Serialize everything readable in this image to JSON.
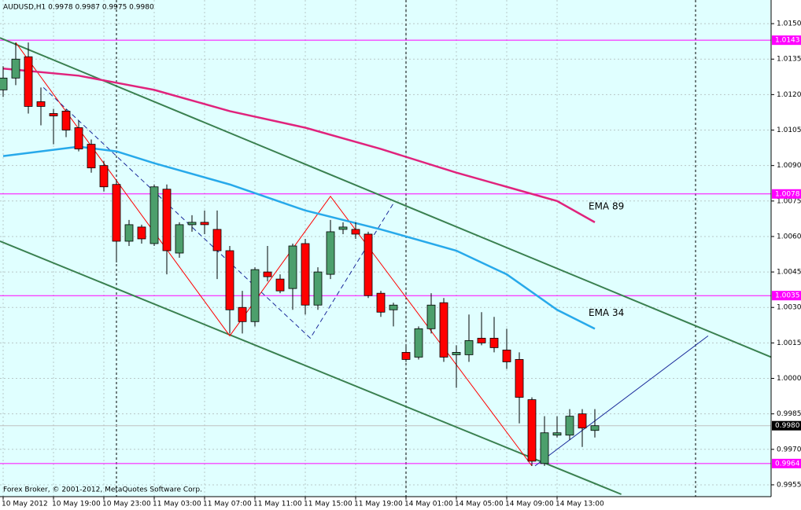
{
  "chart_data": {
    "type": "candlestick",
    "header": "AUDUSD,H1  0.9978 0.9987 0.9975 0.9980",
    "footer": "Forex Broker, © 2001-2012, MetaQuotes Software Corp.",
    "categories": [
      "10 May 2012",
      null,
      null,
      null,
      "10 May 19:00",
      null,
      null,
      null,
      "10 May 23:00",
      null,
      null,
      null,
      "11 May 03:00",
      null,
      null,
      null,
      "11 May 07:00",
      null,
      null,
      null,
      "11 May 11:00",
      null,
      null,
      null,
      "11 May 15:00",
      null,
      null,
      null,
      "11 May 19:00",
      null,
      null,
      null,
      "14 May 01:00",
      null,
      null,
      null,
      "14 May 05:00",
      null,
      null,
      null,
      "14 May 09:00",
      null,
      null,
      null,
      "14 May 13:00",
      null,
      null,
      null
    ],
    "open": [
      1.0122,
      1.0127,
      1.0136,
      1.0117,
      1.0112,
      1.0113,
      1.0106,
      1.0099,
      1.009,
      1.0082,
      1.0058,
      1.0064,
      1.0057,
      1.008,
      1.0053,
      1.0065,
      1.0066,
      1.0063,
      1.0054,
      1.003,
      1.0024,
      1.0045,
      1.0042,
      1.0038,
      1.0057,
      1.0031,
      1.0044,
      1.0063,
      1.0063,
      1.0061,
      1.0036,
      1.0029,
      1.0011,
      1.0009,
      1.0021,
      1.0032,
      1.001,
      1.001,
      1.0017,
      1.0017,
      1.0012,
      1.0008,
      0.9991,
      0.9964,
      0.9976,
      0.9976,
      0.9985,
      0.9978
    ],
    "high": [
      1.0132,
      1.0142,
      1.0142,
      1.0123,
      1.0114,
      1.0114,
      1.0109,
      1.0101,
      1.0092,
      1.0084,
      1.0067,
      1.0065,
      1.0082,
      1.0082,
      1.0066,
      1.0069,
      1.0071,
      1.0071,
      1.0056,
      1.0037,
      1.0047,
      1.0056,
      1.0044,
      1.0057,
      1.0059,
      1.0047,
      1.0067,
      1.0066,
      1.0066,
      1.0062,
      1.0037,
      1.0032,
      1.0014,
      1.0022,
      1.0036,
      1.0034,
      1.0014,
      1.0027,
      1.0028,
      1.0026,
      1.0021,
      1.0011,
      0.9992,
      0.9984,
      0.9984,
      0.9987,
      0.9987,
      0.9987
    ],
    "low": [
      1.0119,
      1.0124,
      1.0112,
      1.0107,
      1.0099,
      1.0102,
      1.0096,
      1.0087,
      1.0079,
      1.0049,
      1.0056,
      1.0057,
      1.0056,
      1.0044,
      1.0051,
      1.0062,
      1.0061,
      1.0042,
      1.0019,
      1.0019,
      1.0022,
      1.0041,
      1.0036,
      1.0029,
      1.0027,
      1.0029,
      1.0042,
      1.0061,
      1.0059,
      1.0034,
      1.0026,
      1.0022,
      1.0007,
      1.0008,
      1.0019,
      1.0007,
      0.9996,
      1.0007,
      1.0014,
      1.0011,
      1.0004,
      0.9981,
      0.9963,
      0.9963,
      0.9975,
      0.9974,
      0.9971,
      0.9975
    ],
    "close": [
      1.0127,
      1.0135,
      1.0115,
      1.0115,
      1.0111,
      1.0105,
      1.0097,
      1.0089,
      1.0081,
      1.0058,
      1.0065,
      1.0059,
      1.0081,
      1.0054,
      1.0065,
      1.0066,
      1.0065,
      1.0054,
      1.0029,
      1.0024,
      1.0046,
      1.0043,
      1.0037,
      1.0056,
      1.0031,
      1.0045,
      1.0062,
      1.0064,
      1.0061,
      1.0035,
      1.0028,
      1.0031,
      1.0008,
      1.0021,
      1.0031,
      1.0009,
      1.0011,
      1.0016,
      1.0015,
      1.0013,
      1.0007,
      0.9992,
      0.9965,
      0.9977,
      0.9977,
      0.9984,
      0.9979,
      0.998
    ],
    "up_color": "#4c9f6c",
    "down_color": "#ff0000",
    "background": "#e0ffff",
    "ylim": [
      0.995,
      1.016
    ],
    "yticks": [
      {
        "value": 1.015,
        "label": "1.0150"
      },
      1.0135,
      {
        "value": 1.012,
        "label": "1.0120"
      },
      1.0105,
      {
        "value": 1.009,
        "label": "1.0090"
      },
      1.0075,
      {
        "value": 1.006,
        "label": "1.0060"
      },
      1.0045,
      {
        "value": 1.003,
        "label": "1.0030"
      },
      1.0015,
      {
        "value": 1.0,
        "label": "1.0000"
      },
      0.9985,
      {
        "value": 0.997,
        "label": "0.9970"
      },
      0.9955
    ],
    "grid": true,
    "indicators": [
      {
        "name": "EMA 89",
        "color": "#e0237c",
        "x": [
          0,
          6,
          9,
          12,
          18,
          24,
          30,
          36,
          40,
          44,
          47
        ],
        "values": [
          1.0131,
          1.0128,
          1.0125,
          1.0122,
          1.0113,
          1.0106,
          1.0097,
          1.0087,
          1.0081,
          1.0075,
          1.0066
        ]
      },
      {
        "name": "EMA 34",
        "color": "#27a9ea",
        "x": [
          0,
          6,
          9,
          12,
          18,
          24,
          30,
          36,
          40,
          44,
          47
        ],
        "values": [
          1.0094,
          1.0098,
          1.0096,
          1.0091,
          1.0082,
          1.0071,
          1.0063,
          1.0054,
          1.0044,
          1.0029,
          1.0021
        ]
      }
    ],
    "trendlines": [
      {
        "color": "#3a8050",
        "width": 2,
        "dash": false,
        "x": [
          -0.25,
          61
        ],
        "values": [
          1.0144,
          1.0009
        ]
      },
      {
        "color": "#3a8050",
        "width": 2,
        "dash": false,
        "x": [
          -0.25,
          49.1
        ],
        "values": [
          1.0058,
          0.9951
        ]
      },
      {
        "color": "#ff0000",
        "width": 1,
        "dash": false,
        "x": [
          1,
          18,
          26,
          42
        ],
        "values": [
          1.0142,
          1.0018,
          1.0077,
          0.9963
        ]
      },
      {
        "color": "#1a2a9a",
        "width": 1,
        "dash": true,
        "x": [
          3.2,
          24.4,
          31
        ],
        "values": [
          1.0123,
          1.0017,
          1.0074
        ]
      },
      {
        "color": "#1a2a9a",
        "width": 1,
        "dash": false,
        "x": [
          42.25,
          56
        ],
        "values": [
          0.9963,
          1.0018
        ]
      }
    ],
    "levels": {
      "color": "#ff00ff",
      "values": [
        1.0143,
        1.0078,
        1.0035,
        0.9964
      ]
    },
    "current_price": {
      "value": 0.998,
      "label": "0.9980"
    }
  }
}
